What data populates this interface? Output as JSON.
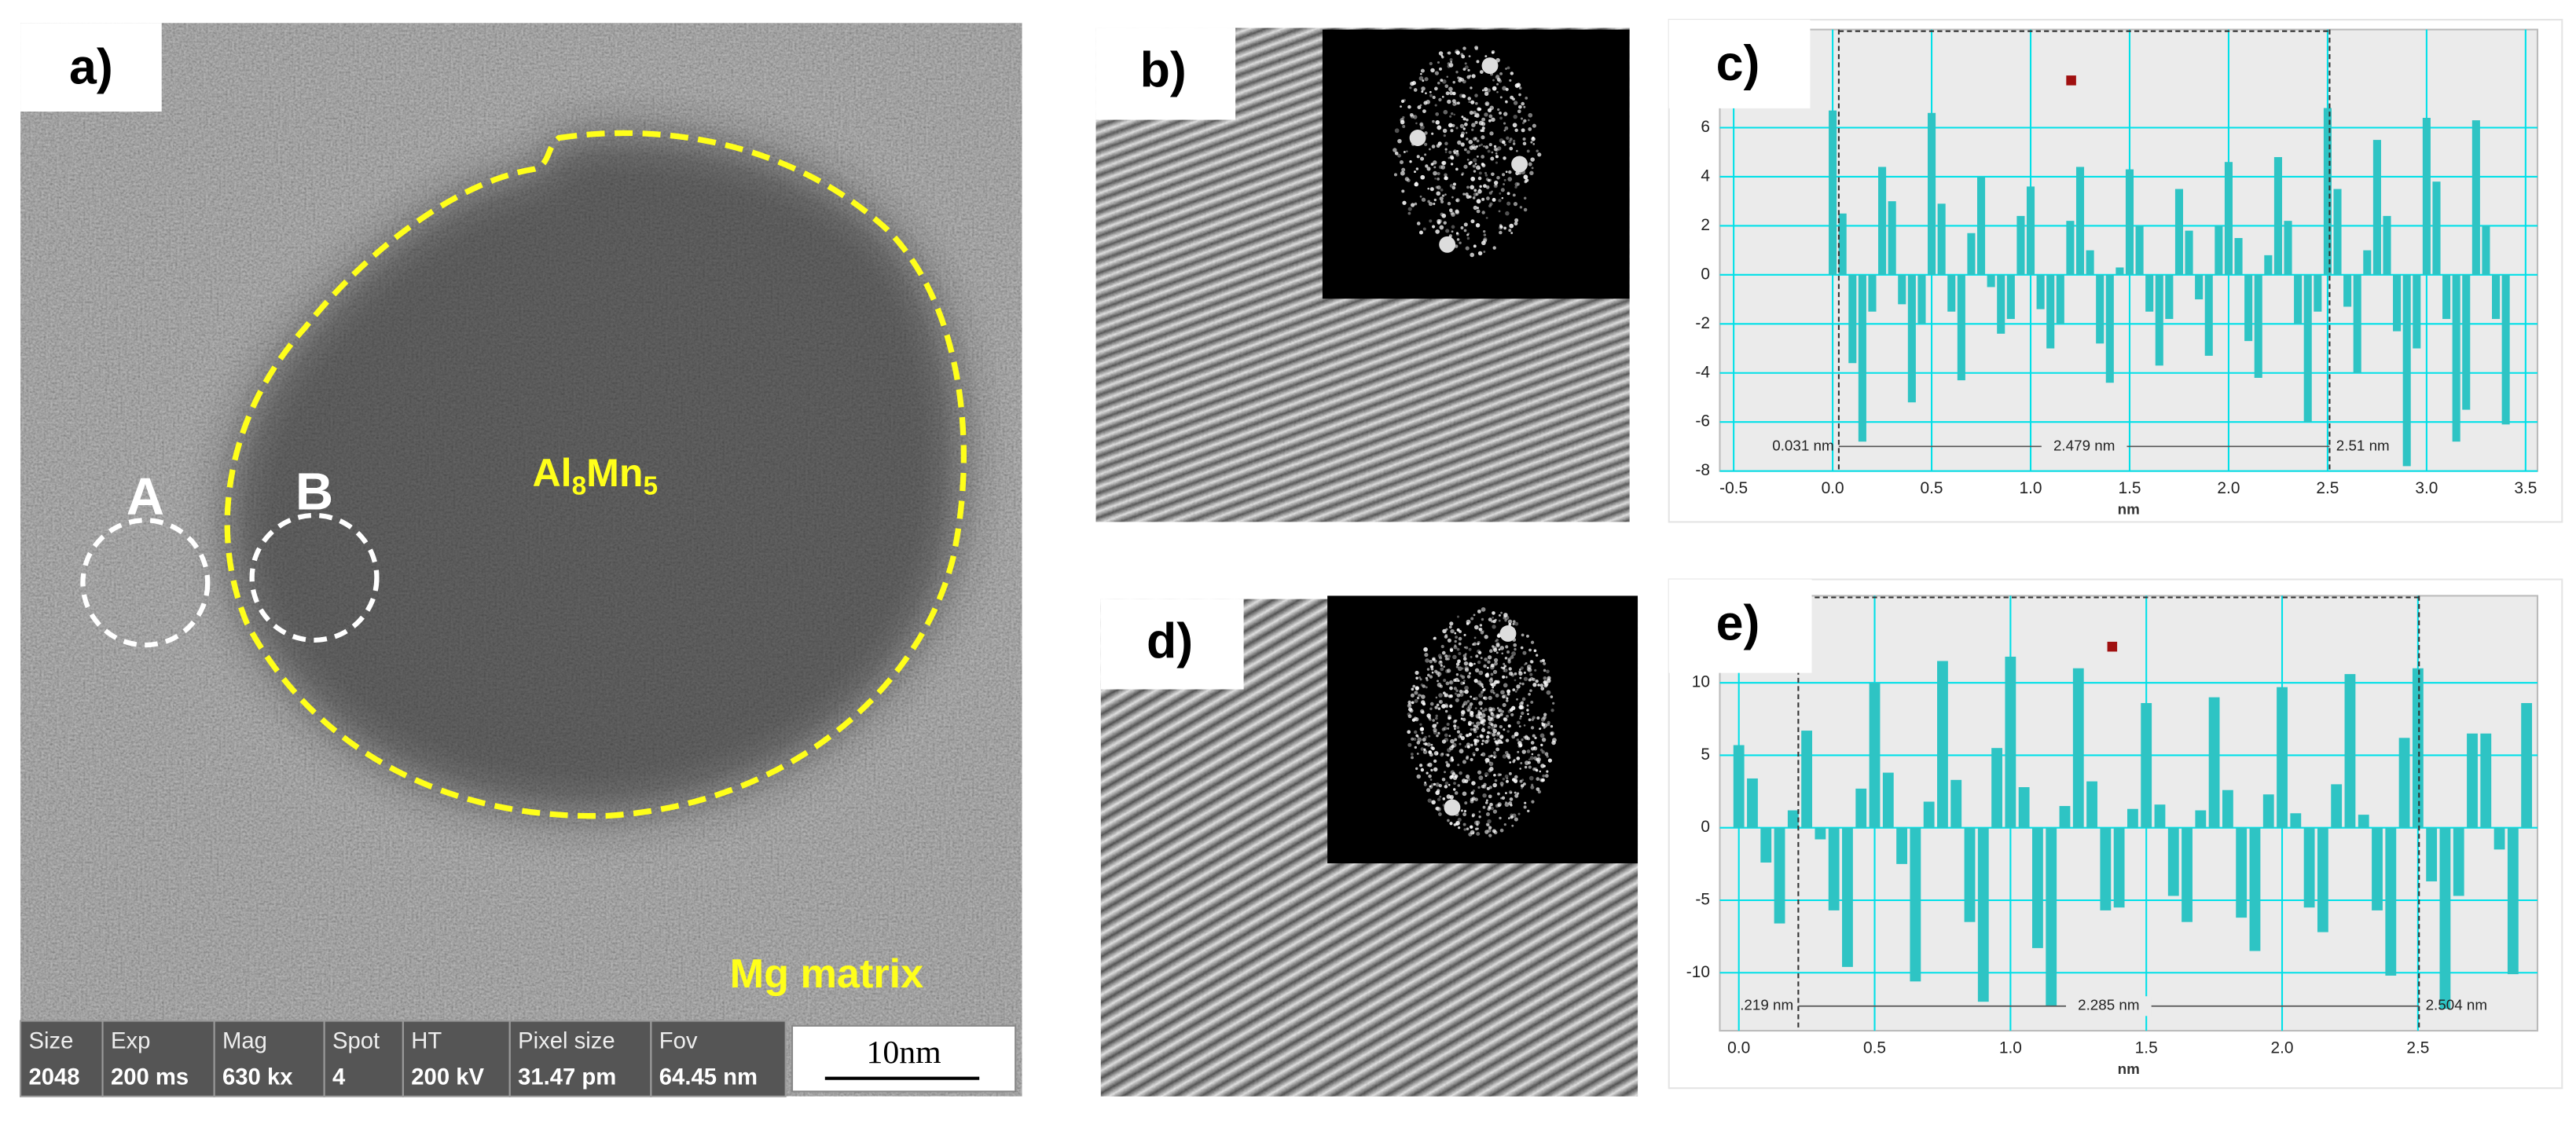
{
  "panels": {
    "a": {
      "label": "a)",
      "particle_label": [
        "Al",
        "8",
        "Mn",
        "5"
      ],
      "region_labels": [
        "A",
        "B"
      ],
      "matrix_label": "Mg matrix",
      "info_bar": [
        {
          "name": "Size",
          "value": 2048
        },
        {
          "name": "Exp",
          "value": "200 ms"
        },
        {
          "name": "Mag",
          "value": "630 kx"
        },
        {
          "name": "Spot",
          "value": 4
        },
        {
          "name": "HT",
          "value": "200 kV"
        },
        {
          "name": "Pixel size",
          "value": "31.47 pm"
        },
        {
          "name": "Fov",
          "value": "64.45 nm"
        }
      ],
      "scale_bar": "10nm"
    },
    "b": {
      "label": "b)"
    },
    "d": {
      "label": "d)"
    }
  },
  "chart_data": [
    {
      "type": "bar",
      "label": "c)",
      "x_label": "nm",
      "color": "#2ec4c4",
      "grid": true,
      "grid_color": "#00e0e8",
      "x": [
        0,
        0.05,
        0.1,
        0.15,
        0.2,
        0.25,
        0.3,
        0.35,
        0.4,
        0.45,
        0.5,
        0.55,
        0.6,
        0.65,
        0.7,
        0.75,
        0.8,
        0.85,
        0.9,
        0.95,
        1,
        1.05,
        1.1,
        1.15,
        1.2,
        1.25,
        1.3,
        1.35,
        1.4,
        1.45,
        1.5,
        1.55,
        1.6,
        1.65,
        1.7,
        1.75,
        1.8,
        1.85,
        1.9,
        1.95,
        2,
        2.05,
        2.1,
        2.15,
        2.2,
        2.25,
        2.3,
        2.35,
        2.4,
        2.45,
        2.5,
        2.55,
        2.6,
        2.65,
        2.7,
        2.75,
        2.8,
        2.85,
        2.9,
        2.95,
        3,
        3.05,
        3.1,
        3.15,
        3.2,
        3.25,
        3.3,
        3.35,
        3.4
      ],
      "values": [
        6.7,
        2.5,
        -3.6,
        -6.8,
        -1.5,
        4.4,
        3.0,
        -1.2,
        -5.2,
        -2.0,
        6.6,
        2.9,
        -1.5,
        -4.3,
        1.7,
        4.0,
        -0.5,
        -2.4,
        -1.8,
        2.4,
        3.6,
        -1.4,
        -3.0,
        -2.0,
        2.2,
        4.4,
        1.0,
        -2.8,
        -4.4,
        0.3,
        4.3,
        2.0,
        -1.5,
        -3.7,
        -1.8,
        3.5,
        1.8,
        -1.0,
        -3.3,
        2.0,
        4.6,
        1.5,
        -2.7,
        -4.2,
        0.8,
        4.8,
        2.2,
        -2.0,
        -6.0,
        -1.5,
        6.8,
        3.5,
        -1.3,
        -4.0,
        1.0,
        5.5,
        2.4,
        -2.3,
        -7.8,
        -3.0,
        6.4,
        3.8,
        -1.8,
        -6.8,
        -5.5,
        6.3,
        2.0,
        -1.8,
        -6.1
      ],
      "xlim": [
        -0.57,
        3.56
      ],
      "xticks": [
        -0.5,
        {
          "value": 0,
          "label": "0.0"
        },
        0.5,
        {
          "value": 1,
          "label": "1.0"
        },
        1.5,
        {
          "value": 2,
          "label": "2.0"
        },
        2.5,
        {
          "value": 3,
          "label": "3.0"
        },
        3.5
      ],
      "ylim": [
        -8,
        10
      ],
      "yticks": [
        -8,
        -6,
        -4,
        -2,
        0,
        2,
        4,
        6
      ],
      "cursors": [
        {
          "x": 0.031,
          "label": "0.031 nm"
        },
        {
          "x": 2.51,
          "label": "2.51 nm"
        }
      ],
      "span_label": "2.479 nm"
    },
    {
      "type": "bar",
      "label": "e)",
      "x_label": "nm",
      "color": "#2ec4c4",
      "grid": true,
      "grid_color": "#00e0e8",
      "x": [
        0,
        0.05,
        0.1,
        0.15,
        0.2,
        0.25,
        0.3,
        0.35,
        0.4,
        0.45,
        0.5,
        0.55,
        0.6,
        0.65,
        0.7,
        0.75,
        0.8,
        0.85,
        0.9,
        0.95,
        1,
        1.05,
        1.1,
        1.15,
        1.2,
        1.25,
        1.3,
        1.35,
        1.4,
        1.45,
        1.5,
        1.55,
        1.6,
        1.65,
        1.7,
        1.75,
        1.8,
        1.85,
        1.9,
        1.95,
        2,
        2.05,
        2.1,
        2.15,
        2.2,
        2.25,
        2.3,
        2.35,
        2.4,
        2.45,
        2.5,
        2.55,
        2.6,
        2.65,
        2.7,
        2.75,
        2.8,
        2.85,
        2.9
      ],
      "values": [
        5.7,
        3.4,
        -2.4,
        -6.6,
        1.2,
        6.7,
        -0.8,
        -5.7,
        -9.6,
        2.7,
        10.0,
        3.8,
        -2.5,
        -10.6,
        1.8,
        11.5,
        3.3,
        -6.5,
        -12.0,
        5.5,
        11.8,
        2.8,
        -8.3,
        -12.3,
        1.5,
        11.0,
        3.2,
        -5.7,
        -5.5,
        1.3,
        8.6,
        1.6,
        -4.7,
        -6.5,
        1.2,
        9.0,
        2.6,
        -6.2,
        -8.5,
        2.3,
        9.7,
        1.0,
        -5.5,
        -7.2,
        3.0,
        10.6,
        0.9,
        -5.7,
        -10.2,
        6.2,
        11.0,
        -3.7,
        -12.5,
        -4.7,
        6.5,
        6.5,
        -1.5,
        -10.1,
        8.6
      ],
      "xlim": [
        -0.07,
        2.94
      ],
      "xticks": [
        {
          "value": 0,
          "label": "0.0"
        },
        0.5,
        {
          "value": 1,
          "label": "1.0"
        },
        1.5,
        {
          "value": 2,
          "label": "2.0"
        },
        2.5
      ],
      "ylim": [
        -14,
        16
      ],
      "yticks": [
        -10,
        -5,
        0,
        5,
        10
      ],
      "cursors": [
        {
          "x": 0.219,
          "label": ".219 nm"
        },
        {
          "x": 2.504,
          "label": "2.504 nm"
        }
      ],
      "span_label": "2.285 nm"
    }
  ]
}
